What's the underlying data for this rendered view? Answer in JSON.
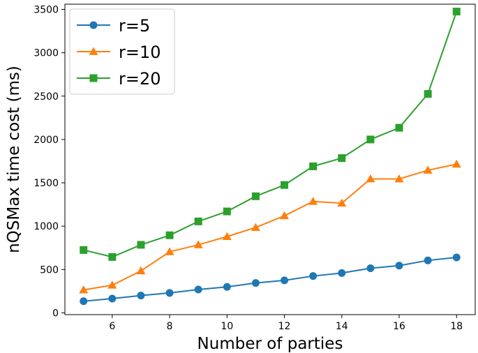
{
  "chart_data": {
    "type": "line",
    "title": "",
    "xlabel": "Number of parties",
    "ylabel": "nQSMax time cost (ms)",
    "x": [
      5,
      6,
      7,
      8,
      9,
      10,
      11,
      12,
      13,
      14,
      15,
      16,
      17,
      18
    ],
    "xlim": [
      4.35,
      18.65
    ],
    "ylim": [
      -20,
      3560
    ],
    "xticks": [
      6,
      8,
      10,
      12,
      14,
      16,
      18
    ],
    "yticks": [
      0,
      500,
      1000,
      1500,
      2000,
      2500,
      3000,
      3500
    ],
    "grid": false,
    "legend_position": "top-left",
    "series": [
      {
        "name": "r=5",
        "color": "#1f77b4",
        "marker": "circle",
        "values": [
          135,
          165,
          200,
          230,
          270,
          300,
          345,
          375,
          425,
          460,
          515,
          545,
          605,
          640
        ]
      },
      {
        "name": "r=10",
        "color": "#ff7f0e",
        "marker": "triangle",
        "values": [
          265,
          320,
          485,
          705,
          785,
          880,
          985,
          1120,
          1285,
          1265,
          1545,
          1545,
          1645,
          1715
        ]
      },
      {
        "name": "r=20",
        "color": "#2ca02c",
        "marker": "square",
        "values": [
          725,
          645,
          785,
          895,
          1055,
          1170,
          1345,
          1475,
          1690,
          1785,
          2000,
          2135,
          2525,
          3475
        ]
      }
    ]
  }
}
